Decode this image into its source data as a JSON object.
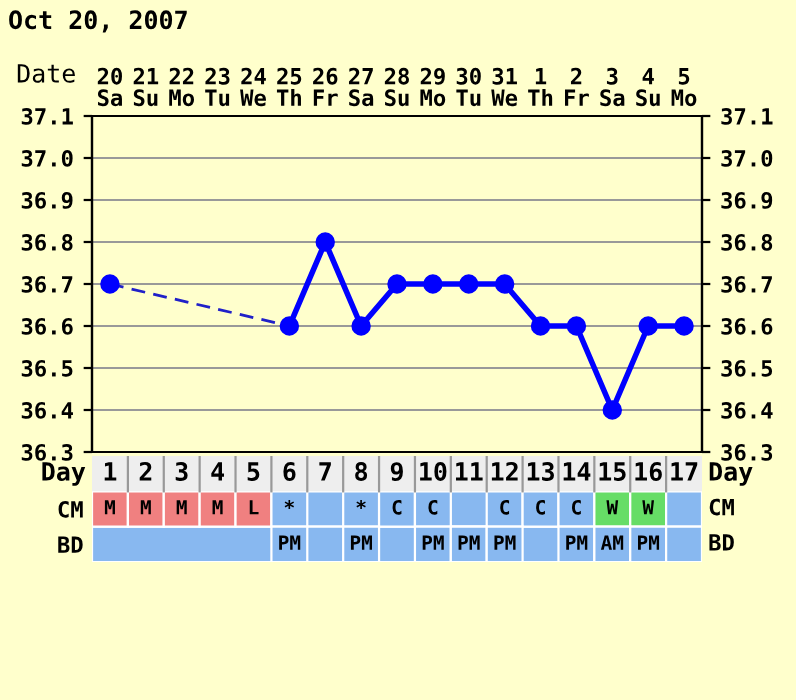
{
  "chart_data": [
    {
      "type": "line",
      "title": "Oct 20, 2007",
      "xlabel": "Date",
      "categories": [
        "20\nSa",
        "21\nSu",
        "22\nMo",
        "23\nTu",
        "24\nWe",
        "25\nTh",
        "26\nFr",
        "27\nSa",
        "28\nSu",
        "29\nMo",
        "30\nTu",
        "31\nWe",
        "1\nTh",
        "2\nFr",
        "3\nSa",
        "4\nSu",
        "5\nMo"
      ],
      "series": [
        {
          "color": "#2020c8",
          "line_style": "dashed",
          "marker": "none",
          "values": [
            36.7,
            null,
            null,
            null,
            null,
            36.6,
            null,
            null,
            null,
            null,
            null,
            null,
            null,
            null,
            null,
            null,
            null
          ]
        },
        {
          "color": "#0000ff",
          "line_style": "solid",
          "marker": "circle",
          "values": [
            36.7,
            null,
            null,
            null,
            null,
            36.6,
            36.8,
            36.6,
            36.7,
            36.7,
            36.7,
            36.7,
            36.6,
            36.6,
            36.4,
            36.6,
            36.6
          ]
        }
      ],
      "ylim": [
        36.3,
        37.1
      ],
      "yticks": [
        36.3,
        36.4,
        36.5,
        36.6,
        36.7,
        36.8,
        36.9,
        {
          "value": 37.0,
          "label": "37.0"
        },
        37.1
      ],
      "y2lim": [
        36.3,
        37.1
      ],
      "y2ticks": [
        36.3,
        36.4,
        36.5,
        36.6,
        36.7,
        36.8,
        36.9,
        {
          "value": 37.0,
          "label": "37.0"
        },
        37.1
      ],
      "grid": true,
      "legend": false
    },
    {
      "type": "heatmap",
      "xlabel": "Day",
      "categories": [
        "1",
        "2",
        "3",
        "4",
        "5",
        "6",
        "7",
        "8",
        "9",
        "10",
        "11",
        "12",
        "13",
        "14",
        "15",
        "16",
        "17"
      ],
      "y_categories": [
        "CM",
        "BD"
      ],
      "y2_categories": [
        "CM",
        "BD"
      ],
      "cells": [
        [
          null,
          null,
          null,
          null,
          null,
          null,
          null,
          null,
          null,
          null,
          null,
          null,
          null,
          null,
          null,
          null,
          null
        ],
        [
          null,
          null,
          null,
          null,
          null,
          null,
          null,
          null,
          null,
          null,
          null,
          null,
          null,
          null,
          null,
          null,
          null
        ]
      ],
      "cell_labels": [
        [
          "M",
          "M",
          "M",
          "M",
          "L",
          "*",
          null,
          "*",
          "C",
          "C",
          null,
          "C",
          "C",
          "C",
          "W",
          "W",
          null
        ],
        [
          null,
          null,
          null,
          null,
          null,
          "PM",
          null,
          "PM",
          null,
          "PM",
          "PM",
          "PM",
          null,
          "PM",
          "AM",
          "PM",
          null
        ]
      ],
      "colors": [
        [
          "#f08080",
          "#f08080",
          "#f08080",
          "#f08080",
          "#f08080",
          "#88b8f0",
          "#88b8f0",
          "#88b8f0",
          "#88b8f0",
          "#88b8f0",
          "#88b8f0",
          "#88b8f0",
          "#88b8f0",
          "#88b8f0",
          "#66dd66",
          "#66dd66",
          "#88b8f0"
        ],
        [
          "#88b8f0",
          "#88b8f0",
          "#88b8f0",
          "#88b8f0",
          "#88b8f0",
          "#88b8f0",
          "#88b8f0",
          "#88b8f0",
          "#88b8f0",
          "#88b8f0",
          "#88b8f0",
          "#88b8f0",
          "#88b8f0",
          "#88b8f0",
          "#88b8f0",
          "#88b8f0",
          "#88b8f0"
        ]
      ]
    }
  ]
}
